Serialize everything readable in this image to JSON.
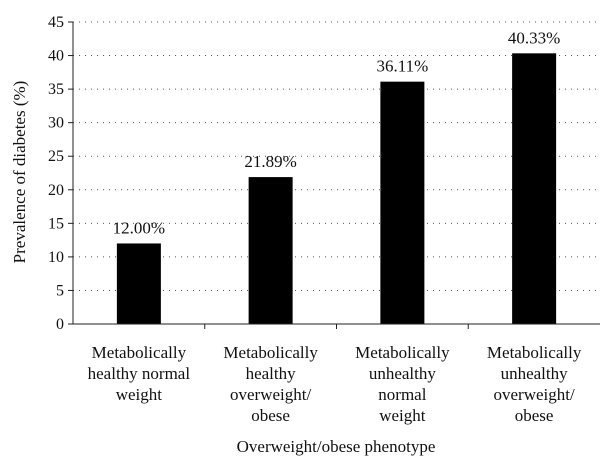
{
  "chart_data": {
    "type": "bar",
    "categories": [
      [
        "Metabolically",
        "healthy normal",
        "weight"
      ],
      [
        "Metabolically",
        "healthy",
        "overweight/",
        "obese"
      ],
      [
        "Metabolically",
        "unhealthy",
        "normal",
        "weight"
      ],
      [
        "Metabolically",
        "unhealthy",
        "overweight/",
        "obese"
      ]
    ],
    "values": [
      12.0,
      21.89,
      36.11,
      40.33
    ],
    "data_labels": [
      "12.00%",
      "21.89%",
      "36.11%",
      "40.33%"
    ],
    "xlabel": "Overweight/obese phenotype",
    "ylabel": "Prevalence of diabetes (%)",
    "ylim": [
      0,
      45
    ],
    "yticks": [
      0,
      5,
      10,
      15,
      20,
      25,
      30,
      35,
      40,
      45
    ],
    "grid": "dotted horizontal",
    "bar_color": "#000000"
  }
}
